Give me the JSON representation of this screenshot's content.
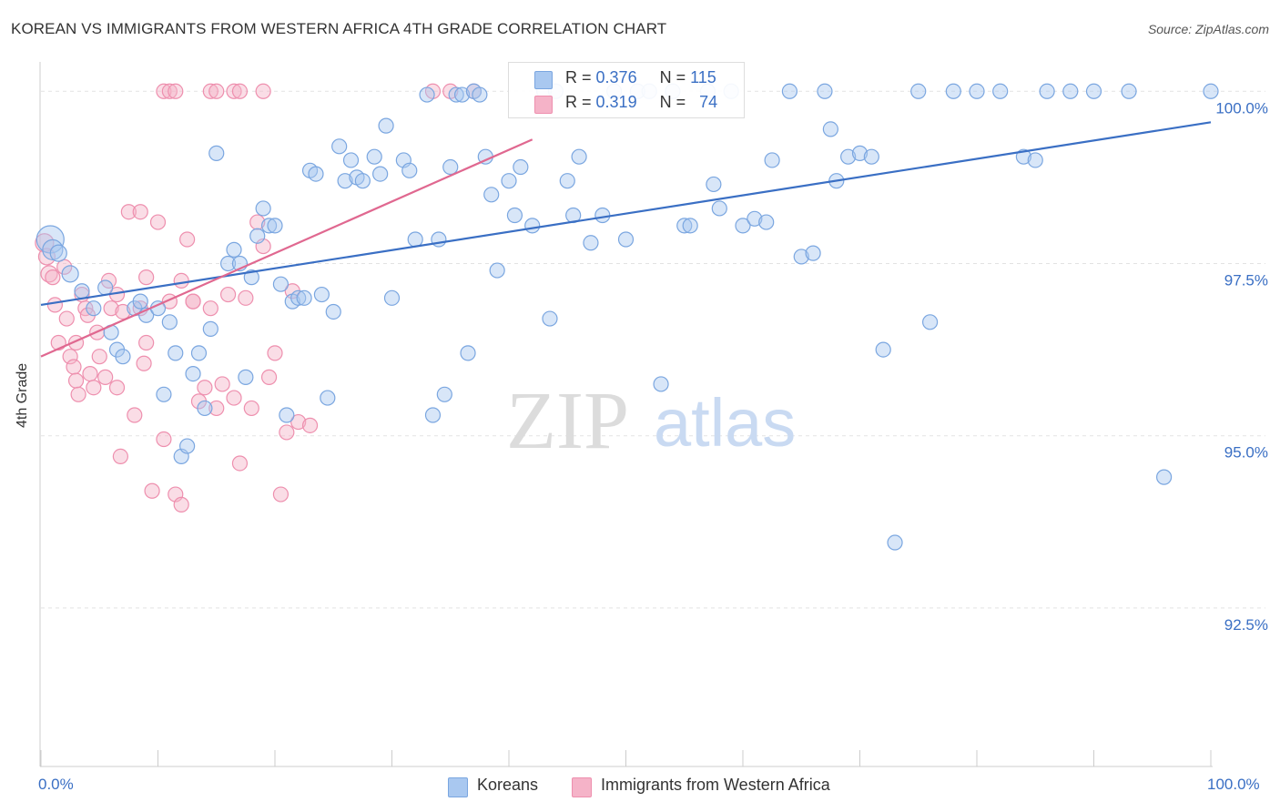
{
  "title": "KOREAN VS IMMIGRANTS FROM WESTERN AFRICA 4TH GRADE CORRELATION CHART",
  "source": "Source: ZipAtlas.com",
  "watermark": {
    "zip": "ZIP",
    "atlas": "atlas"
  },
  "colors": {
    "blue": "#3a6fc4",
    "blue_fill": "#a9c8f0",
    "blue_stroke": "#7aa6e0",
    "pink": "#e06890",
    "pink_fill": "#f5b3c8",
    "pink_stroke": "#ee8fae",
    "grid": "#e3e3e3",
    "axis_text": "#3a6fc4"
  },
  "legend": {
    "row1": {
      "r_label": "R =",
      "r_value": "0.376",
      "n_label": "N =",
      "n_value": "115"
    },
    "row2": {
      "r_label": "R =",
      "r_value": "0.319",
      "n_label": "N =",
      "n_value": "74"
    }
  },
  "bottom_legend": {
    "koreans": "Koreans",
    "immigrants": "Immigrants from Western Africa"
  },
  "x_tick_labels": {
    "left": "0.0%",
    "right": "100.0%"
  },
  "chart_data": {
    "type": "scatter",
    "title": "KOREAN VS IMMIGRANTS FROM WESTERN AFRICA 4TH GRADE CORRELATION CHART",
    "xlabel": "",
    "ylabel": "4th Grade",
    "xlim": [
      0,
      100
    ],
    "ylim": [
      90.2,
      100.4
    ],
    "y_ticks": [
      {
        "value": 100.0,
        "label": "100.0%"
      },
      {
        "value": 97.5,
        "label": "97.5%"
      },
      {
        "value": 95.0,
        "label": "95.0%"
      },
      {
        "value": 92.5,
        "label": "92.5%"
      }
    ],
    "series": [
      {
        "name": "Koreans",
        "color": "#3a6fc4",
        "trend": {
          "x": [
            0,
            100
          ],
          "y": [
            96.9,
            99.55
          ]
        },
        "points": [
          [
            0.8,
            97.85,
            14
          ],
          [
            1.0,
            97.7,
            10
          ],
          [
            1.5,
            97.65,
            8
          ],
          [
            2.5,
            97.35,
            8
          ],
          [
            3.5,
            97.1,
            7
          ],
          [
            4.5,
            96.85,
            7
          ],
          [
            5.5,
            97.15,
            7
          ],
          [
            6.0,
            96.5,
            7
          ],
          [
            6.5,
            96.25,
            7
          ],
          [
            7.0,
            96.15,
            7
          ],
          [
            8.0,
            96.85,
            7
          ],
          [
            8.5,
            96.95,
            7
          ],
          [
            9.0,
            96.75,
            7
          ],
          [
            10.0,
            96.85,
            7
          ],
          [
            10.5,
            95.6,
            7
          ],
          [
            11.0,
            96.65,
            7
          ],
          [
            11.5,
            96.2,
            7
          ],
          [
            12.0,
            94.7,
            7
          ],
          [
            12.5,
            94.85,
            7
          ],
          [
            13.0,
            95.9,
            7
          ],
          [
            13.5,
            96.2,
            7
          ],
          [
            14.0,
            95.4,
            7
          ],
          [
            14.5,
            96.55,
            7
          ],
          [
            15.0,
            99.1,
            7
          ],
          [
            16.0,
            97.5,
            7
          ],
          [
            16.5,
            97.7,
            7
          ],
          [
            17.0,
            97.5,
            7
          ],
          [
            17.5,
            95.85,
            7
          ],
          [
            18.0,
            97.3,
            7
          ],
          [
            18.5,
            97.9,
            7
          ],
          [
            19.0,
            98.3,
            7
          ],
          [
            19.5,
            98.05,
            7
          ],
          [
            20.0,
            98.05,
            7
          ],
          [
            20.5,
            97.2,
            7
          ],
          [
            21.0,
            95.3,
            7
          ],
          [
            21.5,
            96.95,
            7
          ],
          [
            22.0,
            97.0,
            7
          ],
          [
            22.5,
            97.0,
            7
          ],
          [
            23.0,
            98.85,
            7
          ],
          [
            23.5,
            98.8,
            7
          ],
          [
            24.0,
            97.05,
            7
          ],
          [
            24.5,
            95.55,
            7
          ],
          [
            25.0,
            96.8,
            7
          ],
          [
            25.5,
            99.2,
            7
          ],
          [
            26.0,
            98.7,
            7
          ],
          [
            26.5,
            99.0,
            7
          ],
          [
            27.0,
            98.75,
            7
          ],
          [
            27.5,
            98.7,
            7
          ],
          [
            28.5,
            99.05,
            7
          ],
          [
            29.0,
            98.8,
            7
          ],
          [
            29.5,
            99.5,
            7
          ],
          [
            30.0,
            97.0,
            7
          ],
          [
            31.0,
            99.0,
            7
          ],
          [
            31.5,
            98.85,
            7
          ],
          [
            32.0,
            97.85,
            7
          ],
          [
            33.0,
            99.95,
            7
          ],
          [
            33.5,
            95.3,
            7
          ],
          [
            34.0,
            97.85,
            7
          ],
          [
            34.5,
            95.6,
            7
          ],
          [
            35.0,
            98.9,
            7
          ],
          [
            35.5,
            99.95,
            7
          ],
          [
            36.0,
            99.95,
            7
          ],
          [
            36.5,
            96.2,
            7
          ],
          [
            37.0,
            100.0,
            7
          ],
          [
            37.5,
            99.95,
            7
          ],
          [
            38.0,
            99.05,
            7
          ],
          [
            38.5,
            98.5,
            7
          ],
          [
            39.0,
            97.4,
            7
          ],
          [
            40.0,
            98.7,
            7
          ],
          [
            40.5,
            98.2,
            7
          ],
          [
            41.0,
            98.9,
            7
          ],
          [
            42.0,
            98.05,
            7
          ],
          [
            43.0,
            100.0,
            7
          ],
          [
            43.5,
            96.7,
            7
          ],
          [
            44.0,
            100.0,
            7
          ],
          [
            45.0,
            98.7,
            7
          ],
          [
            45.5,
            98.2,
            7
          ],
          [
            46.0,
            99.05,
            7
          ],
          [
            47.0,
            97.8,
            7
          ],
          [
            48.0,
            98.2,
            7
          ],
          [
            49.0,
            100.0,
            7
          ],
          [
            50.0,
            97.85,
            7
          ],
          [
            51.0,
            100.0,
            7
          ],
          [
            52.0,
            100.0,
            7
          ],
          [
            53.0,
            95.75,
            7
          ],
          [
            54.0,
            100.0,
            7
          ],
          [
            55.0,
            98.05,
            7
          ],
          [
            55.5,
            98.05,
            7
          ],
          [
            57.0,
            100.0,
            7
          ],
          [
            57.5,
            98.65,
            7
          ],
          [
            58.0,
            98.3,
            7
          ],
          [
            59.0,
            100.0,
            7
          ],
          [
            60.0,
            98.05,
            7
          ],
          [
            61.0,
            98.15,
            7
          ],
          [
            62.0,
            98.1,
            7
          ],
          [
            62.5,
            99.0,
            7
          ],
          [
            64.0,
            100.0,
            7
          ],
          [
            65.0,
            97.6,
            7
          ],
          [
            66.0,
            97.65,
            7
          ],
          [
            67.0,
            100.0,
            7
          ],
          [
            67.5,
            99.45,
            7
          ],
          [
            68.0,
            98.7,
            7
          ],
          [
            69.0,
            99.05,
            7
          ],
          [
            70.0,
            99.1,
            7
          ],
          [
            71.0,
            99.05,
            7
          ],
          [
            72.0,
            96.25,
            7
          ],
          [
            73.0,
            93.45,
            7
          ],
          [
            75.0,
            100.0,
            7
          ],
          [
            76.0,
            96.65,
            7
          ],
          [
            78.0,
            100.0,
            7
          ],
          [
            80.0,
            100.0,
            7
          ],
          [
            82.0,
            100.0,
            7
          ],
          [
            84.0,
            99.05,
            7
          ],
          [
            85.0,
            99.0,
            7
          ],
          [
            86.0,
            100.0,
            7
          ],
          [
            88.0,
            100.0,
            7
          ],
          [
            90.0,
            100.0,
            7
          ],
          [
            93.0,
            100.0,
            7
          ],
          [
            96.0,
            94.4,
            7
          ],
          [
            100.0,
            100.0,
            7
          ]
        ]
      },
      {
        "name": "Immigrants from Western Africa",
        "color": "#e06890",
        "trend": {
          "x": [
            0,
            42
          ],
          "y": [
            96.15,
            99.3
          ]
        },
        "points": [
          [
            0.3,
            97.8,
            9
          ],
          [
            0.5,
            97.6,
            8
          ],
          [
            0.7,
            97.35,
            8
          ],
          [
            1.0,
            97.3,
            7
          ],
          [
            1.2,
            96.9,
            7
          ],
          [
            1.5,
            96.35,
            7
          ],
          [
            2.0,
            97.45,
            7
          ],
          [
            2.2,
            96.7,
            7
          ],
          [
            2.5,
            96.15,
            7
          ],
          [
            2.8,
            96.0,
            7
          ],
          [
            3.0,
            95.8,
            7
          ],
          [
            3.2,
            95.6,
            7
          ],
          [
            3.5,
            97.05,
            7
          ],
          [
            3.8,
            96.85,
            7
          ],
          [
            4.0,
            96.75,
            7
          ],
          [
            4.2,
            95.9,
            7
          ],
          [
            4.5,
            95.7,
            7
          ],
          [
            4.8,
            96.5,
            7
          ],
          [
            5.0,
            96.15,
            7
          ],
          [
            5.5,
            95.85,
            7
          ],
          [
            5.8,
            97.25,
            7
          ],
          [
            6.0,
            96.85,
            7
          ],
          [
            6.5,
            95.7,
            7
          ],
          [
            6.8,
            94.7,
            7
          ],
          [
            7.0,
            96.8,
            7
          ],
          [
            7.5,
            98.25,
            7
          ],
          [
            8.0,
            95.3,
            7
          ],
          [
            8.5,
            96.85,
            7
          ],
          [
            8.8,
            96.05,
            7
          ],
          [
            9.0,
            96.35,
            7
          ],
          [
            9.5,
            94.2,
            7
          ],
          [
            10.0,
            98.1,
            7
          ],
          [
            10.5,
            94.95,
            7
          ],
          [
            11.0,
            96.95,
            7
          ],
          [
            11.5,
            94.15,
            7
          ],
          [
            12.0,
            97.25,
            7
          ],
          [
            12.5,
            97.85,
            7
          ],
          [
            13.0,
            96.95,
            7
          ],
          [
            13.5,
            95.5,
            7
          ],
          [
            14.0,
            95.7,
            7
          ],
          [
            14.5,
            96.85,
            7
          ],
          [
            15.0,
            95.4,
            7
          ],
          [
            15.5,
            95.75,
            7
          ],
          [
            16.0,
            97.05,
            7
          ],
          [
            16.5,
            95.55,
            7
          ],
          [
            17.0,
            94.6,
            7
          ],
          [
            17.5,
            97.0,
            7
          ],
          [
            18.0,
            95.4,
            7
          ],
          [
            18.5,
            98.1,
            7
          ],
          [
            19.0,
            97.75,
            7
          ],
          [
            19.5,
            95.85,
            7
          ],
          [
            20.0,
            96.2,
            7
          ],
          [
            20.5,
            94.15,
            7
          ],
          [
            21.0,
            95.05,
            7
          ],
          [
            21.5,
            97.1,
            7
          ],
          [
            22.0,
            95.2,
            7
          ],
          [
            23.0,
            95.15,
            7
          ],
          [
            10.5,
            100.0,
            7
          ],
          [
            11.0,
            100.0,
            7
          ],
          [
            11.5,
            100.0,
            7
          ],
          [
            14.5,
            100.0,
            7
          ],
          [
            15.0,
            100.0,
            7
          ],
          [
            16.5,
            100.0,
            7
          ],
          [
            17.0,
            100.0,
            7
          ],
          [
            19.0,
            100.0,
            7
          ],
          [
            33.5,
            100.0,
            7
          ],
          [
            35.0,
            100.0,
            7
          ],
          [
            37.0,
            100.0,
            7
          ],
          [
            8.5,
            98.25,
            7
          ],
          [
            9.0,
            97.3,
            7
          ],
          [
            12.0,
            94.0,
            7
          ],
          [
            6.5,
            97.05,
            7
          ],
          [
            13.0,
            96.95,
            7
          ],
          [
            3.0,
            96.35,
            7
          ]
        ]
      }
    ]
  }
}
